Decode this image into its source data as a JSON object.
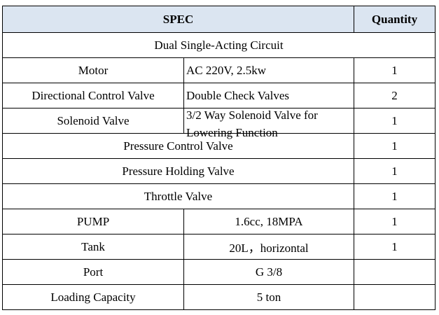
{
  "header": {
    "spec": "SPEC",
    "quantity": "Quantity"
  },
  "table": {
    "rows": [
      [
        "Dual Single-Acting Circuit"
      ],
      [
        "Motor",
        "AC 220V, 2.5kw",
        "1"
      ],
      [
        "Directional Control Valve",
        "Double Check Valves",
        "2"
      ],
      [
        "Solenoid Valve",
        "3/2 Way Solenoid Valve for Lowering Function",
        "1"
      ],
      [
        "Pressure Control Valve",
        "1"
      ],
      [
        "Pressure Holding Valve",
        "1"
      ],
      [
        "Throttle Valve",
        "1"
      ],
      [
        "PUMP",
        "1.6cc, 18MPA",
        "1"
      ],
      [
        "Tank",
        "20L，horizontal",
        "1"
      ],
      [
        "Port",
        "G 3/8"
      ],
      [
        "Loading Capacity",
        "5 ton"
      ]
    ]
  }
}
